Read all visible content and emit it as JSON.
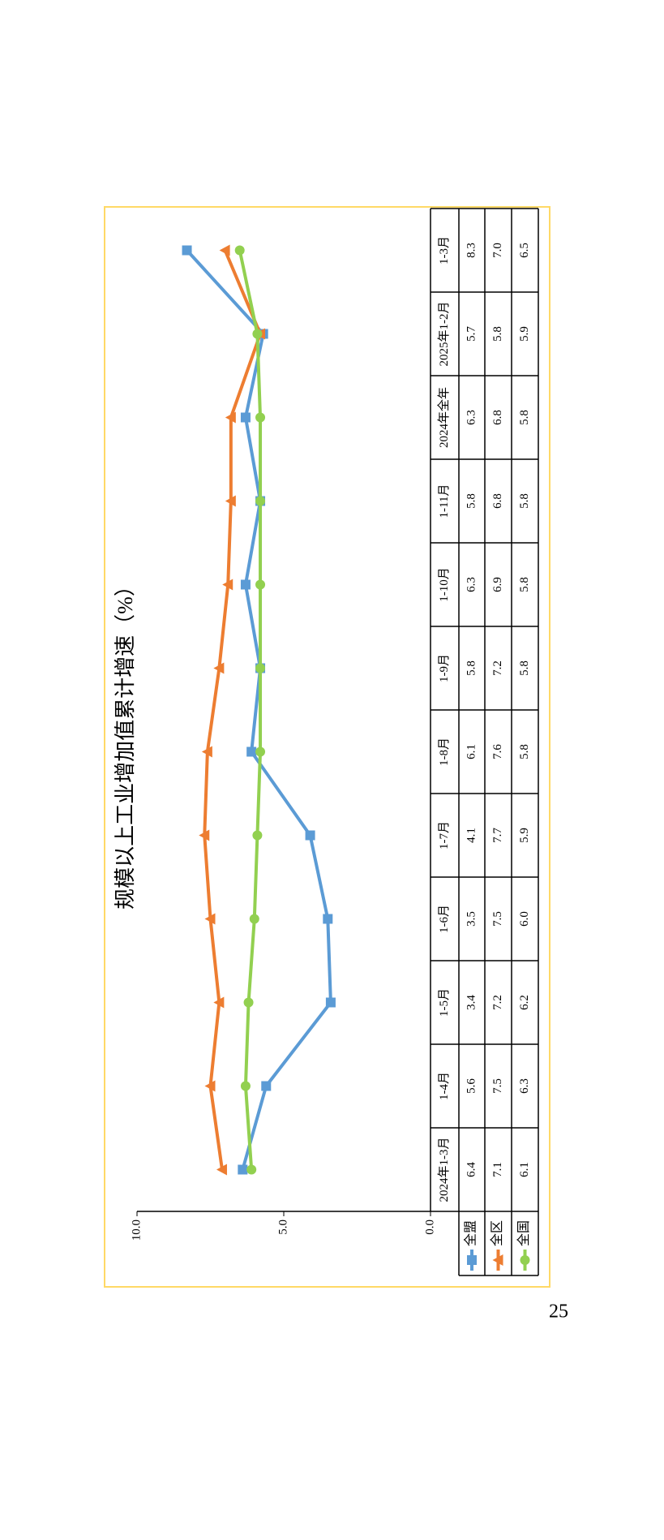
{
  "page_number": "25",
  "chart_data": {
    "type": "line",
    "title": "规模以上工业增加值累计增速（%）",
    "categories": [
      "2024年1-3月",
      "1-4月",
      "1-5月",
      "1-6月",
      "1-7月",
      "1-8月",
      "1-9月",
      "1-10月",
      "1-11月",
      "2024年全年",
      "2025年1-2月",
      "1-3月"
    ],
    "series": [
      {
        "name": "全盟",
        "color": "#5b9bd5",
        "marker": "square",
        "values": [
          6.4,
          5.6,
          3.4,
          3.5,
          4.1,
          6.1,
          5.8,
          6.3,
          5.8,
          6.3,
          5.7,
          8.3
        ],
        "value_labels": [
          "6.4",
          "5.6",
          "3.4",
          "3.5",
          "4.1",
          "6.1",
          "5.8",
          "6.3",
          "5.8",
          "6.3",
          "5.7",
          "8.3"
        ]
      },
      {
        "name": "全区",
        "color": "#ed7d31",
        "marker": "triangle",
        "values": [
          7.1,
          7.5,
          7.2,
          7.5,
          7.7,
          7.6,
          7.2,
          6.9,
          6.8,
          6.8,
          5.8,
          7.0
        ],
        "value_labels": [
          "7.1",
          "7.5",
          "7.2",
          "7.5",
          "7.7",
          "7.6",
          "7.2",
          "6.9",
          "6.8",
          "6.8",
          "5.8",
          "7.0"
        ]
      },
      {
        "name": "全国",
        "color": "#92d050",
        "marker": "circle",
        "values": [
          6.1,
          6.3,
          6.2,
          6.0,
          5.9,
          5.8,
          5.8,
          5.8,
          5.8,
          5.8,
          5.9,
          6.5
        ],
        "value_labels": [
          "6.1",
          "6.3",
          "6.2",
          "6.0",
          "5.9",
          "5.8",
          "5.8",
          "5.8",
          "5.8",
          "5.8",
          "5.9",
          "6.5"
        ]
      }
    ],
    "ylim": [
      0,
      10
    ],
    "yticks": [
      {
        "value": 0,
        "label": "0.0"
      },
      {
        "value": 5,
        "label": "5.0"
      },
      {
        "value": 10,
        "label": "10.0"
      }
    ],
    "data_table": true
  }
}
